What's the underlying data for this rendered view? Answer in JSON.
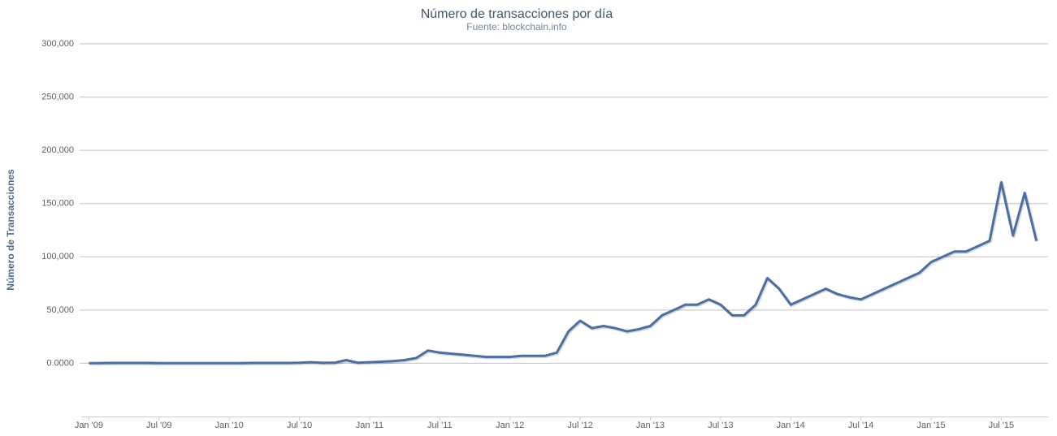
{
  "chart_data": {
    "type": "line",
    "title": "Número de transacciones por día",
    "subtitle": "Fuente: blockchain.info",
    "y_label": "Número de Transacciones",
    "x": [
      "2009-01",
      "2009-02",
      "2009-03",
      "2009-04",
      "2009-05",
      "2009-06",
      "2009-07",
      "2009-08",
      "2009-09",
      "2009-10",
      "2009-11",
      "2009-12",
      "2010-01",
      "2010-02",
      "2010-03",
      "2010-04",
      "2010-05",
      "2010-06",
      "2010-07",
      "2010-08",
      "2010-09",
      "2010-10",
      "2010-11",
      "2010-12",
      "2011-01",
      "2011-02",
      "2011-03",
      "2011-04",
      "2011-05",
      "2011-06",
      "2011-07",
      "2011-08",
      "2011-09",
      "2011-10",
      "2011-11",
      "2011-12",
      "2012-01",
      "2012-02",
      "2012-03",
      "2012-04",
      "2012-05",
      "2012-06",
      "2012-07",
      "2012-08",
      "2012-09",
      "2012-10",
      "2012-11",
      "2012-12",
      "2013-01",
      "2013-02",
      "2013-03",
      "2013-04",
      "2013-05",
      "2013-06",
      "2013-07",
      "2013-08",
      "2013-09",
      "2013-10",
      "2013-11",
      "2013-12",
      "2014-01",
      "2014-02",
      "2014-03",
      "2014-04",
      "2014-05",
      "2014-06",
      "2014-07",
      "2014-08",
      "2014-09",
      "2014-10",
      "2014-11",
      "2014-12",
      "2015-01",
      "2015-02",
      "2015-03",
      "2015-04",
      "2015-05",
      "2015-06",
      "2015-07",
      "2015-08",
      "2015-09",
      "2015-10"
    ],
    "series": [
      {
        "name": "Transacciones",
        "color": "#4a6fa5",
        "values": [
          100,
          200,
          300,
          300,
          300,
          300,
          200,
          200,
          200,
          200,
          200,
          200,
          200,
          200,
          300,
          300,
          300,
          300,
          500,
          1000,
          400,
          500,
          3000,
          500,
          1000,
          1500,
          2000,
          3000,
          5000,
          12000,
          10000,
          9000,
          8000,
          7000,
          6000,
          6000,
          6000,
          7000,
          7000,
          7000,
          10000,
          30000,
          40000,
          33000,
          35000,
          33000,
          30000,
          32000,
          35000,
          45000,
          50000,
          55000,
          55000,
          60000,
          55000,
          45000,
          45000,
          55000,
          80000,
          70000,
          55000,
          60000,
          65000,
          70000,
          65000,
          62000,
          60000,
          65000,
          70000,
          75000,
          80000,
          85000,
          95000,
          100000,
          105000,
          105000,
          110000,
          115000,
          170000,
          120000,
          160000,
          115000
        ]
      }
    ],
    "xlim": [
      "2008-12",
      "2015-11"
    ],
    "xticks": [
      {
        "value": "2009-01",
        "label": "Jan '09"
      },
      {
        "value": "2009-07",
        "label": "Jul '09"
      },
      {
        "value": "2010-01",
        "label": "Jan '10"
      },
      {
        "value": "2010-07",
        "label": "Jul '10"
      },
      {
        "value": "2011-01",
        "label": "Jan '11"
      },
      {
        "value": "2011-07",
        "label": "Jul '11"
      },
      {
        "value": "2012-01",
        "label": "Jan '12"
      },
      {
        "value": "2012-07",
        "label": "Jul '12"
      },
      {
        "value": "2013-01",
        "label": "Jan '13"
      },
      {
        "value": "2013-07",
        "label": "Jul '13"
      },
      {
        "value": "2014-01",
        "label": "Jan '14"
      },
      {
        "value": "2014-07",
        "label": "Jul '14"
      },
      {
        "value": "2015-01",
        "label": "Jan '15"
      },
      {
        "value": "2015-07",
        "label": "Jul '15"
      }
    ],
    "ylim": [
      -50000,
      300000
    ],
    "yticks": [
      {
        "value": 0,
        "label": "0.0000"
      },
      {
        "value": 50000,
        "label": "50,000"
      },
      {
        "value": 100000,
        "label": "100,000"
      },
      {
        "value": 150000,
        "label": "150,000"
      },
      {
        "value": 200000,
        "label": "200,000"
      },
      {
        "value": 250000,
        "label": "250,000"
      },
      {
        "value": 300000,
        "label": "300,000"
      }
    ],
    "grid": true
  }
}
